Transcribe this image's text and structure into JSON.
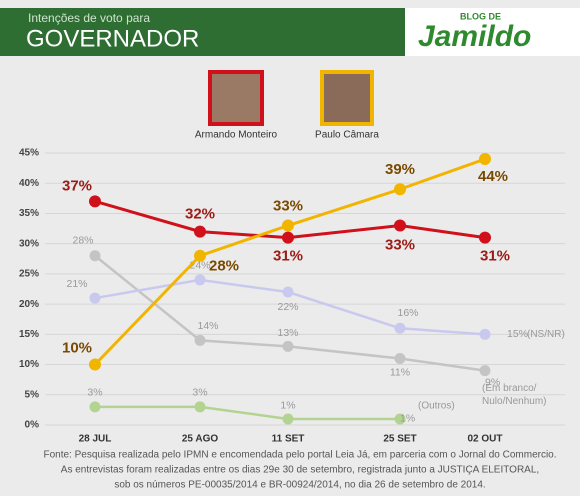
{
  "header": {
    "subtitle": "Intenções de voto para",
    "title": "GOVERNADOR",
    "logo_small": "BLOG DE",
    "logo": "Jamildo"
  },
  "chart_data": {
    "type": "line",
    "categories": [
      "28 JUL",
      "25 AGO",
      "11 SET",
      "25 SET",
      "02 OUT"
    ],
    "ylim": [
      0,
      45
    ],
    "yticks": [
      {
        "value": 0,
        "label": "0%"
      },
      {
        "value": 5,
        "label": "5%"
      },
      {
        "value": 10,
        "label": "10%"
      },
      {
        "value": 15,
        "label": "15%"
      },
      {
        "value": 20,
        "label": "20%"
      },
      {
        "value": 25,
        "label": "25%"
      },
      {
        "value": 30,
        "label": "30%"
      },
      {
        "value": 35,
        "label": "35%"
      },
      {
        "value": 40,
        "label": "40%"
      },
      {
        "value": 45,
        "label": "45%"
      }
    ],
    "grid": true,
    "series": [
      {
        "name": "(Em branco/ Nulo/Nenhum)",
        "color": "#c4c4c4",
        "values": [
          28,
          14,
          13,
          11,
          9
        ],
        "value_labels": [
          "28%",
          "14%",
          "13%",
          "11%",
          "9%"
        ]
      },
      {
        "name": "(NS/NR)",
        "color": "#c9c9ef",
        "values": [
          21,
          24,
          22,
          16,
          15
        ],
        "value_labels": [
          "21%",
          "24%",
          "22%",
          "16%",
          "15%"
        ]
      },
      {
        "name": "(Outros)",
        "color": "#b3d391",
        "values": [
          3,
          3,
          1,
          1,
          null
        ],
        "value_labels": [
          "3%",
          "3%",
          "1%",
          "1%",
          null
        ]
      },
      {
        "name": "Armando Monteiro",
        "color": "#d0101a",
        "values": [
          37,
          32,
          31,
          33,
          31
        ],
        "value_labels": [
          "37%",
          "32%",
          "31%",
          "33%",
          "31%"
        ]
      },
      {
        "name": "Paulo Câmara",
        "color": "#f1b500",
        "values": [
          10,
          28,
          33,
          39,
          44
        ],
        "value_labels": [
          "10%",
          "28%",
          "33%",
          "39%",
          "44%"
        ]
      }
    ],
    "footer": [
      "Fonte: Pesquisa realizada pelo IPMN e encomendada pelo portal Leia Já, em parceria com o Jornal do Commercio.",
      "As entrevistas foram realizadas entre os dias 29e 30 de setembro, registrada junto a JUSTIÇA ELEITORAL,",
      "sob os números PE-00035/2014 e BR-00924/2014, no dia 26 de setembro de 2014."
    ]
  }
}
